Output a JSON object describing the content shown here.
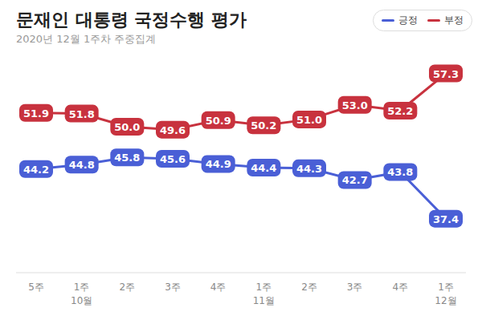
{
  "chart_data": {
    "type": "line",
    "title": "문재인 대통령 국정수행 평가",
    "subtitle": "2020년 12월 1주차 주중집계",
    "categories": [
      "5주",
      "1주\n10월",
      "2주",
      "3주",
      "4주",
      "1주\n11월",
      "2주",
      "3주",
      "4주",
      "1주\n12월"
    ],
    "series": [
      {
        "name": "긍정",
        "color": "#4a5fd6",
        "values": [
          44.2,
          44.8,
          45.8,
          45.6,
          44.9,
          44.4,
          44.3,
          42.7,
          43.8,
          37.4
        ],
        "value_labels": [
          "44.2",
          "44.8",
          "45.8",
          "45.6",
          "44.9",
          "44.4",
          "44.3",
          "42.7",
          "43.8",
          "37.4"
        ]
      },
      {
        "name": "부정",
        "color": "#c8323e",
        "values": [
          51.9,
          51.8,
          50.0,
          49.6,
          50.9,
          50.2,
          51.0,
          53.0,
          52.2,
          57.3
        ],
        "value_labels": [
          "51.9",
          "51.8",
          "50.0",
          "49.6",
          "50.9",
          "50.2",
          "51.0",
          "53.0",
          "52.2",
          "57.3"
        ]
      }
    ],
    "ylim": [
      30,
      60
    ],
    "data_labels": true,
    "tick_labels": "x",
    "legend": "top-right"
  }
}
